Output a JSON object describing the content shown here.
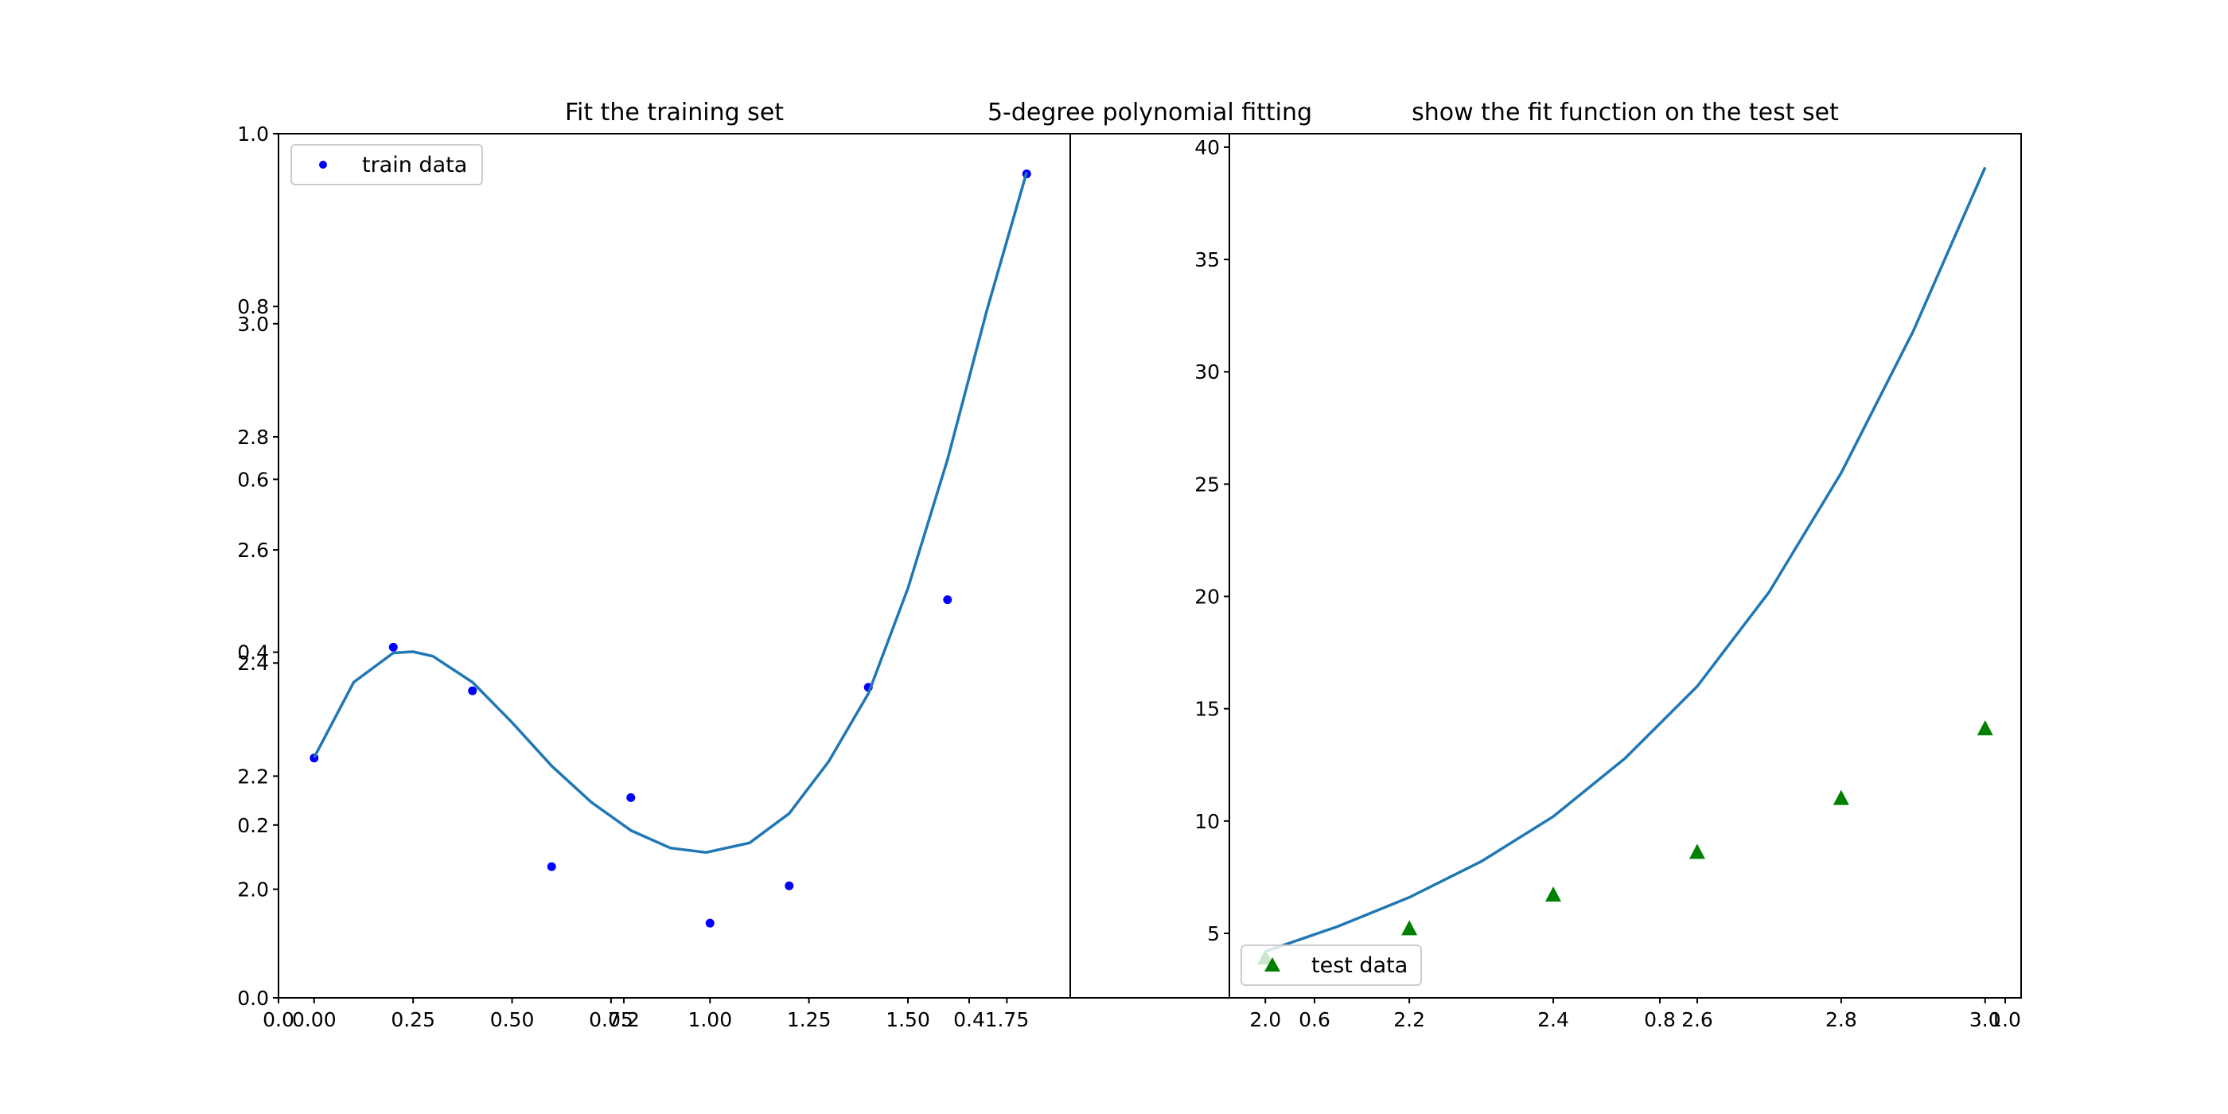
{
  "figure": {
    "background": "#ffffff",
    "suptitle": "5-degree polynomial fitting"
  },
  "chart_data": [
    {
      "type": "scatter",
      "title": "Fit the training set",
      "xlabel": "",
      "ylabel": "",
      "xlim": [
        -0.09,
        1.91
      ],
      "ylim": [
        1.808,
        3.336
      ],
      "grid": false,
      "legend_placement": "upper-left",
      "xticks": [
        0.0,
        0.25,
        0.5,
        0.75,
        1.0,
        1.25,
        1.5,
        1.75
      ],
      "xtick_labels": [
        "0.00",
        "0.25",
        "0.50",
        "0.75",
        "1.00",
        "1.25",
        "1.50",
        "1.75"
      ],
      "yticks": [
        2.0,
        2.2,
        2.4,
        2.6,
        2.8,
        3.0
      ],
      "ytick_labels": [
        "2.0",
        "2.2",
        "2.4",
        "2.6",
        "2.8",
        "3.0"
      ],
      "series": [
        {
          "name": "train data",
          "kind": "scatter",
          "marker": "dot",
          "color": "#0000ff",
          "x": [
            0.0,
            0.2,
            0.4,
            0.6,
            0.8,
            1.0,
            1.2,
            1.4,
            1.6,
            1.8
          ],
          "y": [
            2.232,
            2.428,
            2.351,
            2.04,
            2.162,
            1.94,
            2.006,
            2.357,
            2.512,
            3.265
          ]
        },
        {
          "kind": "line",
          "color": "#1f77b4",
          "x": [
            0.0,
            0.1,
            0.2,
            0.25,
            0.3,
            0.4,
            0.5,
            0.6,
            0.7,
            0.8,
            0.9,
            0.99,
            1.1,
            1.2,
            1.3,
            1.4,
            1.5,
            1.6,
            1.7,
            1.8
          ],
          "y": [
            2.233,
            2.366,
            2.418,
            2.42,
            2.412,
            2.366,
            2.295,
            2.218,
            2.154,
            2.104,
            2.073,
            2.065,
            2.082,
            2.134,
            2.226,
            2.346,
            2.532,
            2.76,
            3.025,
            3.268
          ]
        }
      ]
    },
    {
      "type": "scatter",
      "title": "show the fit function on the test set",
      "xlabel": "",
      "ylabel": "",
      "xlim": [
        1.95,
        3.05
      ],
      "ylim": [
        2.13,
        40.6
      ],
      "grid": false,
      "legend_placement": "lower-left",
      "xticks": [
        2.0,
        2.2,
        2.4,
        2.6,
        2.8,
        3.0
      ],
      "xtick_labels": [
        "2.0",
        "2.2",
        "2.4",
        "2.6",
        "2.8",
        "3.0"
      ],
      "yticks": [
        5,
        10,
        15,
        20,
        25,
        30,
        35,
        40
      ],
      "ytick_labels": [
        "5",
        "10",
        "15",
        "20",
        "25",
        "30",
        "35",
        "40"
      ],
      "series": [
        {
          "name": "test data",
          "kind": "scatter",
          "marker": "triangle",
          "color": "#008000",
          "x": [
            2.0,
            2.2,
            2.4,
            2.6,
            2.8,
            3.0
          ],
          "y": [
            3.9,
            5.2,
            6.7,
            8.6,
            11.0,
            14.1
          ]
        },
        {
          "kind": "line",
          "color": "#1f77b4",
          "x": [
            2.0,
            2.1,
            2.2,
            2.3,
            2.4,
            2.5,
            2.6,
            2.7,
            2.8,
            2.9,
            3.0
          ],
          "y": [
            4.2,
            5.3,
            6.6,
            8.2,
            10.2,
            12.8,
            16.0,
            20.2,
            25.5,
            31.8,
            39.1
          ]
        }
      ]
    }
  ],
  "background_axes": {
    "xticks": [
      0.0,
      0.2,
      0.4,
      0.6,
      0.8,
      1.0
    ],
    "xtick_labels": [
      "0.0",
      "0.2",
      "0.4",
      "0.6",
      "0.8",
      "1.0"
    ],
    "yticks": [
      0.0,
      0.2,
      0.4,
      0.6,
      0.8,
      1.0
    ],
    "ytick_labels": [
      "0.0",
      "0.2",
      "0.4",
      "0.6",
      "0.8",
      "1.0"
    ]
  }
}
